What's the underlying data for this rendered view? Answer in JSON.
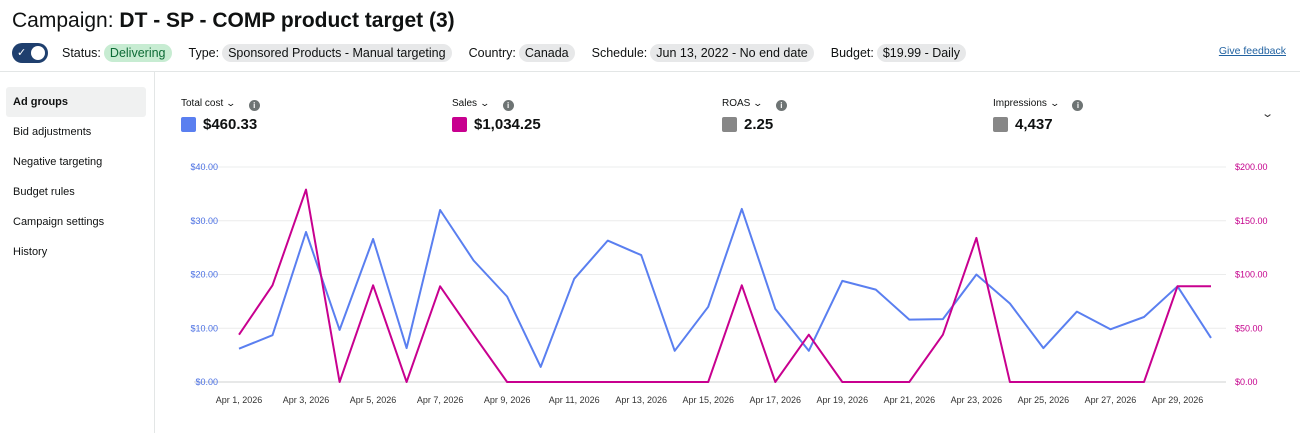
{
  "header": {
    "title_prefix": "Campaign:",
    "title_name": "DT - SP - COMP product target (3)"
  },
  "status_bar": {
    "toggle_on": true,
    "status_label": "Status:",
    "status_value": "Delivering",
    "type_label": "Type:",
    "type_value": "Sponsored Products - Manual targeting",
    "country_label": "Country:",
    "country_value": "Canada",
    "schedule_label": "Schedule:",
    "schedule_value": "Jun 13, 2022 - No end date",
    "budget_label": "Budget:",
    "budget_value": "$19.99 - Daily",
    "feedback_link": "Give feedback"
  },
  "sidebar": {
    "items": [
      {
        "label": "Ad groups",
        "active": true
      },
      {
        "label": "Bid adjustments"
      },
      {
        "label": "Negative targeting"
      },
      {
        "label": "Budget rules"
      },
      {
        "label": "Campaign settings"
      },
      {
        "label": "History"
      }
    ]
  },
  "metrics": [
    {
      "label": "Total cost",
      "value": "$460.33",
      "color": "#5a7ff0"
    },
    {
      "label": "Sales",
      "value": "$1,034.25",
      "color": "#c8008f"
    },
    {
      "label": "ROAS",
      "value": "2.25",
      "color": "#878787"
    },
    {
      "label": "Impressions",
      "value": "4,437",
      "color": "#878787"
    }
  ],
  "chart_data": {
    "type": "line",
    "x": [
      "Apr 1, 2026",
      "Apr 2, 2026",
      "Apr 3, 2026",
      "Apr 4, 2026",
      "Apr 5, 2026",
      "Apr 6, 2026",
      "Apr 7, 2026",
      "Apr 8, 2026",
      "Apr 9, 2026",
      "Apr 10, 2026",
      "Apr 11, 2026",
      "Apr 12, 2026",
      "Apr 13, 2026",
      "Apr 14, 2026",
      "Apr 15, 2026",
      "Apr 16, 2026",
      "Apr 17, 2026",
      "Apr 18, 2026",
      "Apr 19, 2026",
      "Apr 20, 2026",
      "Apr 21, 2026",
      "Apr 22, 2026",
      "Apr 23, 2026",
      "Apr 24, 2026",
      "Apr 25, 2026",
      "Apr 26, 2026",
      "Apr 27, 2026",
      "Apr 28, 2026",
      "Apr 29, 2026",
      "Apr 30, 2026"
    ],
    "x_tick_labels": [
      "Apr 1, 2026",
      "Apr 3, 2026",
      "Apr 5, 2026",
      "Apr 7, 2026",
      "Apr 9, 2026",
      "Apr 11, 2026",
      "Apr 13, 2026",
      "Apr 15, 2026",
      "Apr 17, 2026",
      "Apr 19, 2026",
      "Apr 21, 2026",
      "Apr 23, 2026",
      "Apr 25, 2026",
      "Apr 27, 2026",
      "Apr 29, 2026"
    ],
    "series": [
      {
        "name": "Total cost",
        "axis": "left",
        "color": "#5a7ff0",
        "values": [
          6.2,
          8.7,
          27.9,
          9.7,
          26.6,
          6.3,
          32.0,
          22.6,
          15.9,
          2.8,
          19.2,
          26.3,
          23.6,
          5.8,
          14.0,
          32.2,
          13.6,
          5.8,
          18.8,
          17.2,
          11.6,
          11.7,
          20.0,
          14.6,
          6.3,
          13.1,
          9.8,
          12.1,
          17.8,
          8.2
        ]
      },
      {
        "name": "Sales",
        "axis": "right",
        "color": "#c8008f",
        "values": [
          44,
          90,
          179,
          0,
          90,
          0,
          89,
          44,
          0,
          0,
          0,
          0,
          0,
          0,
          0,
          90,
          0,
          44,
          0,
          0,
          0,
          44,
          134,
          0,
          0,
          0,
          0,
          0,
          89,
          89
        ]
      }
    ],
    "y_left": {
      "min": 0,
      "max": 40,
      "ticks": [
        "$0.00",
        "$10.00",
        "$20.00",
        "$30.00",
        "$40.00"
      ]
    },
    "y_right": {
      "min": 0,
      "max": 200,
      "ticks": [
        "$0.00",
        "$50.00",
        "$100.00",
        "$150.00",
        "$200.00"
      ]
    },
    "grid": true
  }
}
